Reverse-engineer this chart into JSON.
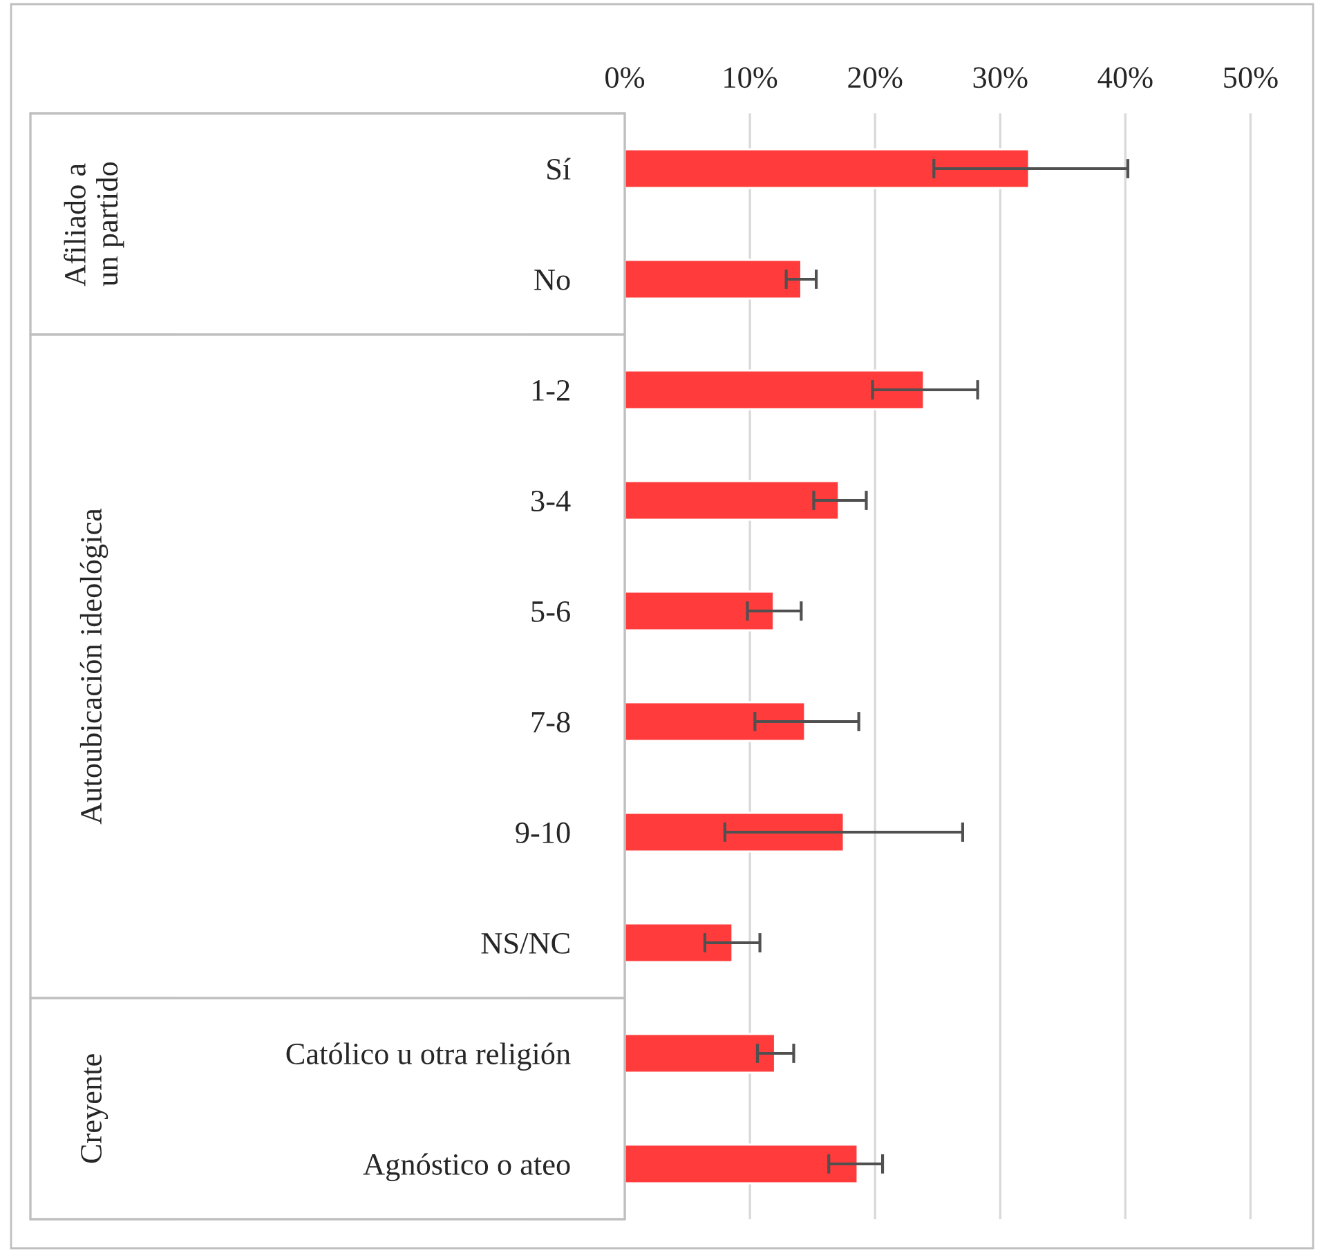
{
  "chart_data": {
    "type": "bar",
    "orientation": "horizontal",
    "categories": [
      "Sí",
      "No",
      "1-2",
      "3-4",
      "5-6",
      "7-8",
      "9-10",
      "NS/NC",
      "Católico u otra religión",
      "Agnóstico o ateo"
    ],
    "values": [
      32.3,
      14.1,
      23.9,
      17.1,
      11.9,
      14.4,
      17.5,
      8.6,
      12.0,
      18.6
    ],
    "errors": [
      [
        24.7,
        40.2
      ],
      [
        12.9,
        15.3
      ],
      [
        19.8,
        28.2
      ],
      [
        15.1,
        19.3
      ],
      [
        9.8,
        14.1
      ],
      [
        10.4,
        18.7
      ],
      [
        8.0,
        27.0
      ],
      [
        6.4,
        10.8
      ],
      [
        10.6,
        13.5
      ],
      [
        16.3,
        20.6
      ]
    ],
    "color": "#ff3b3b",
    "xlim": [
      0,
      55
    ],
    "xticks": [
      {
        "value": 0,
        "label": "0%"
      },
      {
        "value": 10,
        "label": "10%"
      },
      {
        "value": 20,
        "label": "20%"
      },
      {
        "value": 30,
        "label": "30%"
      },
      {
        "value": 40,
        "label": "40%"
      },
      {
        "value": 50,
        "label": "50%"
      }
    ],
    "grid": "x",
    "annotations": [
      "Afiliado a\nun partido",
      "Autoubicación ideológica",
      "Creyente"
    ]
  }
}
